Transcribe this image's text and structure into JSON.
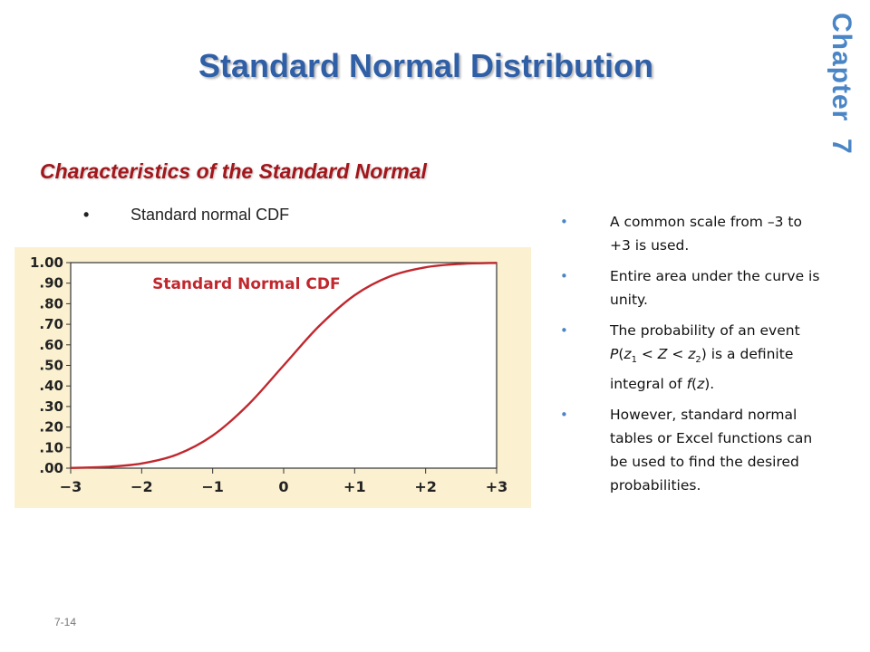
{
  "slide": {
    "title": "Standard Normal Distribution",
    "chapter_label": "Chapter  7",
    "subtitle": "Characteristics of the Standard Normal",
    "left_bullet": "Standard normal CDF",
    "slide_number": "7-14",
    "bullets": [
      [
        {
          "t": "A common scale from "
        },
        {
          "t": "–3 to +3 is used."
        }
      ],
      [
        {
          "t": "Entire area under the curve is unity."
        }
      ],
      [
        {
          "t": "The probability of an event "
        },
        {
          "t": "P",
          "i": true
        },
        {
          "t": "("
        },
        {
          "t": "z",
          "i": true
        },
        {
          "t": "1",
          "sub": true
        },
        {
          "t": " < "
        },
        {
          "t": "Z",
          "i": true
        },
        {
          "t": " < "
        },
        {
          "t": "z",
          "i": true
        },
        {
          "t": "2",
          "sub": true
        },
        {
          "t": ") is a definite integral of "
        },
        {
          "t": "f",
          "i": true
        },
        {
          "t": "("
        },
        {
          "t": "z",
          "i": true
        },
        {
          "t": ")."
        }
      ],
      [
        {
          "t": "However, standard normal tables or Excel functions can be used to find the desired probabilities."
        }
      ]
    ]
  },
  "colors": {
    "title": "#2f5fa7",
    "subtitle": "#a3161b",
    "curve": "#c0282e",
    "chart_background": "#fbf1d1",
    "bullet_marker": "#4a86c5"
  },
  "chart_data": {
    "type": "line",
    "title": "Standard Normal CDF",
    "xlabel": "",
    "ylabel": "",
    "xlim": [
      -3,
      3
    ],
    "ylim": [
      0,
      1
    ],
    "x_ticks": [
      -3,
      -2,
      -1,
      0,
      1,
      2,
      3
    ],
    "x_tick_labels": [
      "−3",
      "−2",
      "−1",
      "0",
      "+1",
      "+2",
      "+3"
    ],
    "y_ticks": [
      0,
      0.1,
      0.2,
      0.3,
      0.4,
      0.5,
      0.6,
      0.7,
      0.8,
      0.9,
      1.0
    ],
    "y_tick_labels": [
      ".00",
      ".10",
      ".20",
      ".30",
      ".40",
      ".50",
      ".60",
      ".70",
      ".80",
      ".90",
      "1.00"
    ],
    "grid": false,
    "series": [
      {
        "x": [
          -3,
          -2.5,
          -2,
          -1.5,
          -1,
          -0.5,
          0,
          0.5,
          1,
          1.5,
          2,
          2.5,
          3
        ],
        "y": [
          0.0013,
          0.0062,
          0.0228,
          0.0668,
          0.1587,
          0.3085,
          0.5,
          0.6915,
          0.8413,
          0.9332,
          0.9772,
          0.9938,
          0.9987
        ]
      }
    ]
  }
}
